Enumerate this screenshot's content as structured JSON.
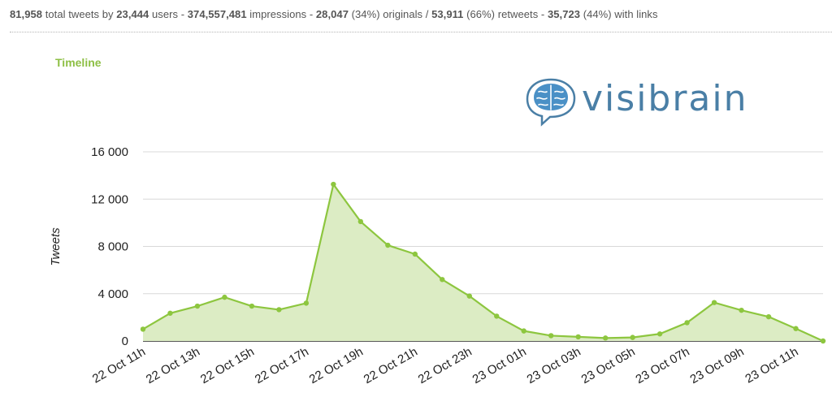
{
  "stats": {
    "total_tweets": "81,958",
    "total_tweets_label": "total tweets by",
    "users": "23,444",
    "users_label": "users -",
    "impressions": "374,557,481",
    "impressions_label": "impressions -",
    "originals": "28,047",
    "originals_label": "(34%) originals /",
    "retweets": "53,911",
    "retweets_label": "(66%) retweets -",
    "links": "35,723",
    "links_label": "(44%) with links"
  },
  "section_title": "Timeline",
  "logo": {
    "text": "visibrain",
    "icon": "brain-speech-bubble-icon",
    "color": "#4a7fa6"
  },
  "colors": {
    "line": "#8dc63f",
    "fill": "#dcecc4",
    "grid": "#d8d8d8",
    "axis": "#222222"
  },
  "chart_data": {
    "type": "area",
    "title": "",
    "xlabel": "",
    "ylabel": "Tweets",
    "ylim": [
      0,
      16000
    ],
    "yticks": [
      0,
      4000,
      8000,
      12000,
      16000
    ],
    "ytick_labels": [
      "0",
      "4 000",
      "8 000",
      "12 000",
      "16 000"
    ],
    "xtick_labels": [
      "22 Oct 11h",
      "22 Oct 13h",
      "22 Oct 15h",
      "22 Oct 17h",
      "22 Oct 19h",
      "22 Oct 21h",
      "22 Oct 23h",
      "23 Oct 01h",
      "23 Oct 03h",
      "23 Oct 05h",
      "23 Oct 07h",
      "23 Oct 09h",
      "23 Oct 11h"
    ],
    "x": [
      "22 Oct 11h",
      "22 Oct 12h",
      "22 Oct 13h",
      "22 Oct 14h",
      "22 Oct 15h",
      "22 Oct 16h",
      "22 Oct 17h",
      "22 Oct 18h",
      "22 Oct 19h",
      "22 Oct 20h",
      "22 Oct 21h",
      "22 Oct 22h",
      "22 Oct 23h",
      "23 Oct 00h",
      "23 Oct 01h",
      "23 Oct 02h",
      "23 Oct 03h",
      "23 Oct 04h",
      "23 Oct 05h",
      "23 Oct 06h",
      "23 Oct 07h",
      "23 Oct 08h",
      "23 Oct 09h",
      "23 Oct 10h",
      "23 Oct 11h",
      "23 Oct 12h"
    ],
    "series": [
      {
        "values": [
          1000,
          2350,
          2950,
          3700,
          2950,
          2650,
          3200,
          13250,
          10100,
          8100,
          7350,
          5200,
          3800,
          2100,
          850,
          450,
          350,
          250,
          300,
          600,
          1550,
          3250,
          2600,
          2050,
          1050,
          0
        ]
      }
    ],
    "grid": true,
    "legend": "none"
  }
}
